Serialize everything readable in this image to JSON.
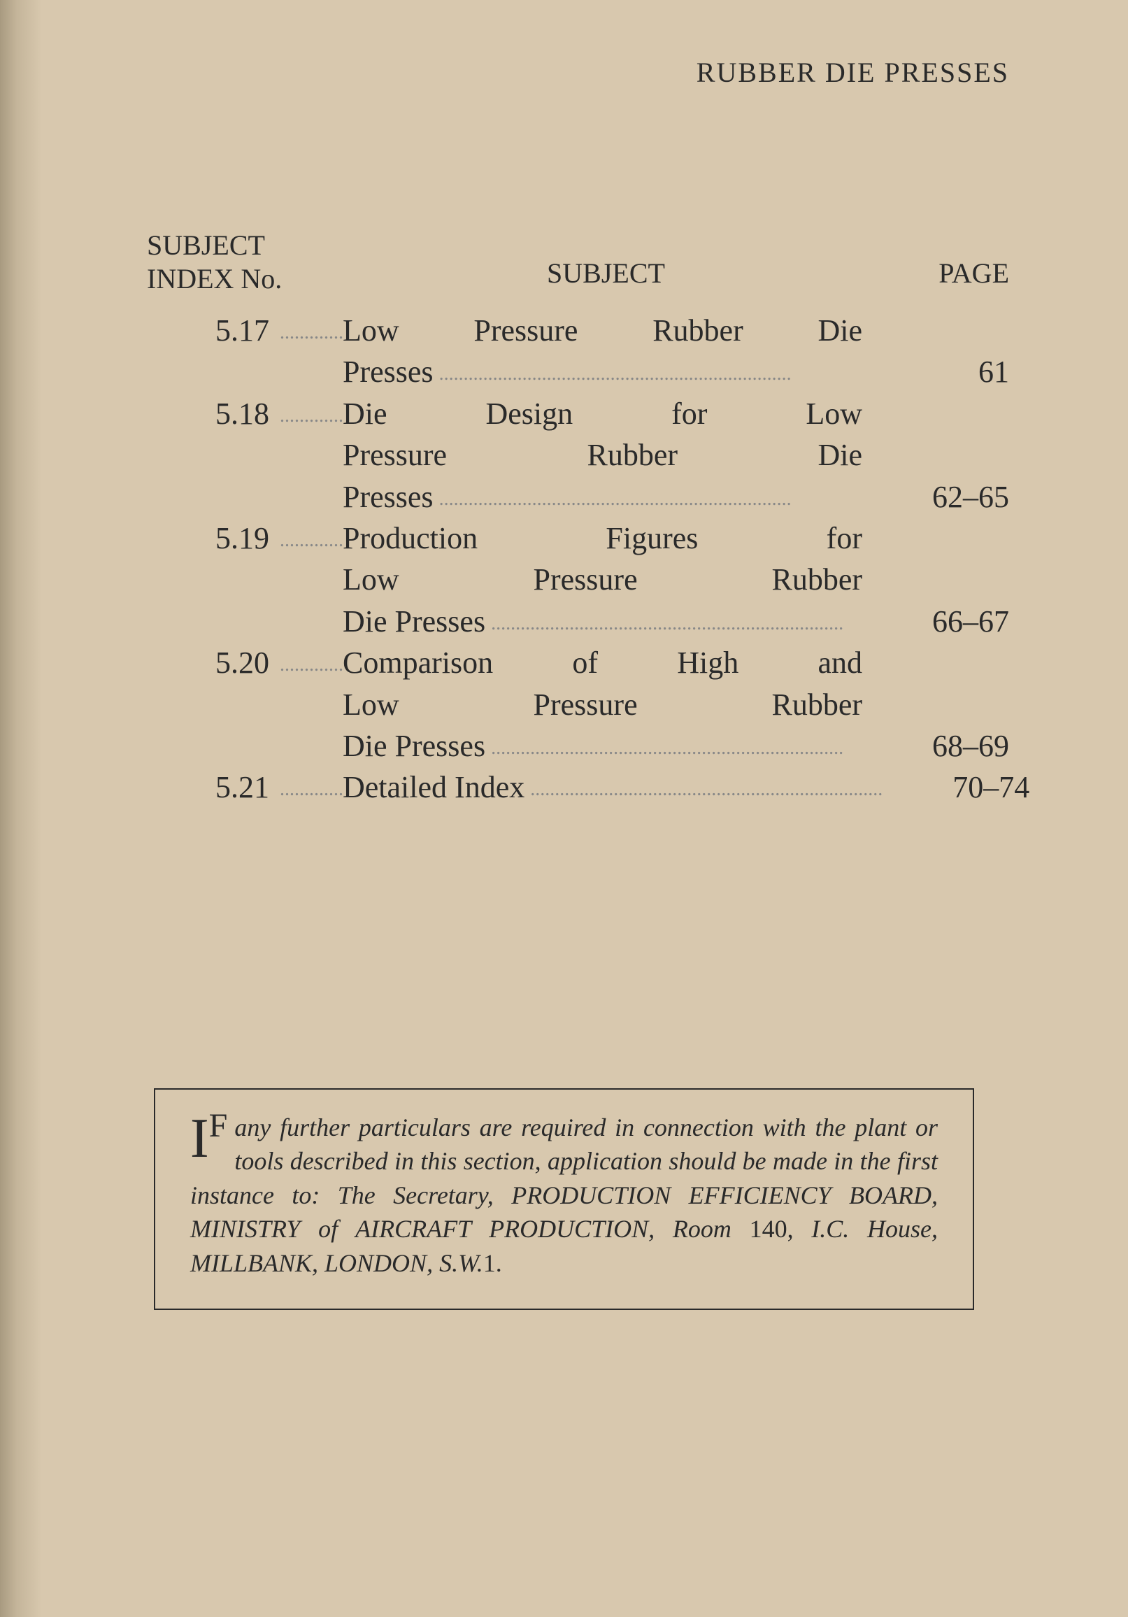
{
  "page_background_color": "#d8c8ae",
  "text_color": "#2a2a2a",
  "header_title": "RUBBER DIE PRESSES",
  "toc": {
    "headers": {
      "index_line1": "SUBJECT",
      "index_line2": "INDEX No.",
      "subject": "SUBJECT",
      "page": "PAGE"
    },
    "entries": [
      {
        "index": "5.17",
        "subject_lines": [
          "Low Pressure Rubber Die",
          "Presses"
        ],
        "page": "61"
      },
      {
        "index": "5.18",
        "subject_lines": [
          "Die Design for Low",
          "Pressure Rubber Die",
          "Presses"
        ],
        "page": "62–65"
      },
      {
        "index": "5.19",
        "subject_lines": [
          "Production Figures for",
          "Low Pressure Rubber",
          "Die Presses"
        ],
        "page": "66–67"
      },
      {
        "index": "5.20",
        "subject_lines": [
          "Comparison of High and",
          "Low Pressure Rubber",
          "Die Presses"
        ],
        "page": "68–69"
      },
      {
        "index": "5.21",
        "subject_lines": [
          "Detailed Index"
        ],
        "page": "70–74"
      }
    ]
  },
  "info_box": {
    "dropcap_main": "I",
    "dropcap_sup": "F",
    "body_part1": "any further particulars are required in connection with the plant or tools described in this section, application should be made in the first instance to: The Secretary, PRODUCTION EFFICIENCY BOARD, MINISTRY of AIRCRAFT PRODUCTION, Room ",
    "room_num": "140,",
    "body_part2": " I.C. House, MILLBANK, LONDON, S.W.",
    "trailing_num": "1."
  }
}
